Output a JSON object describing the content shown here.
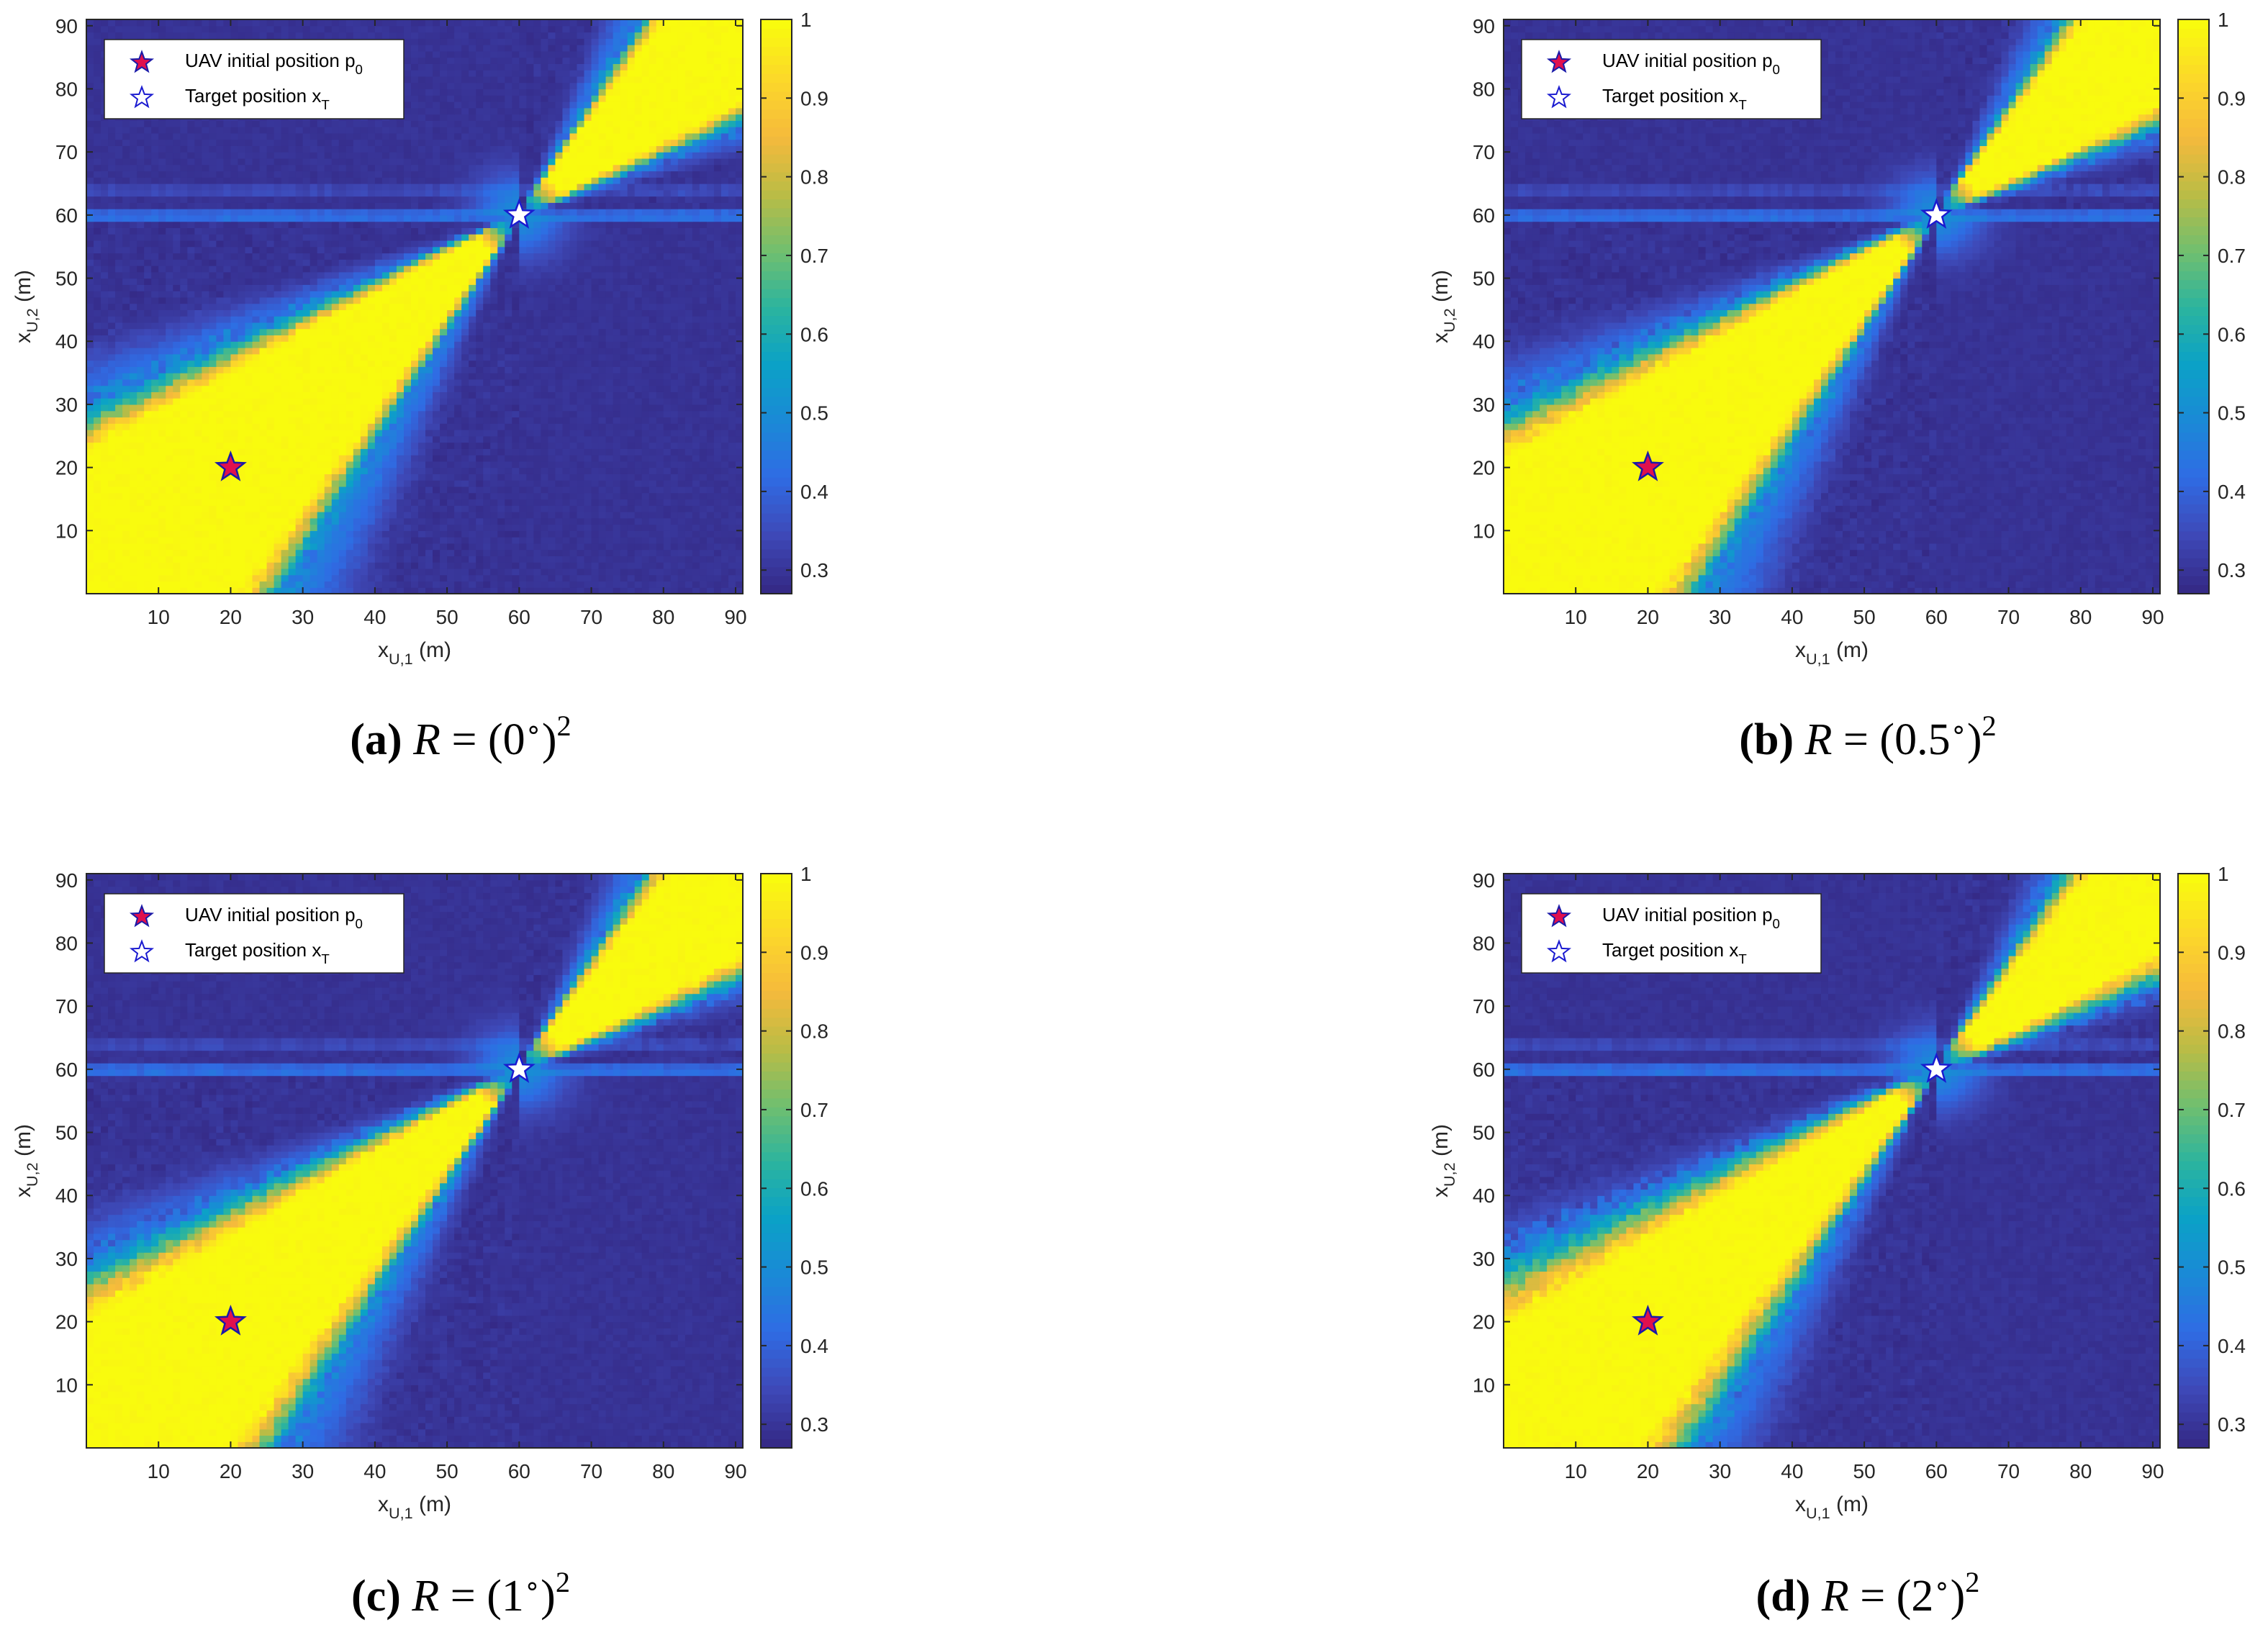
{
  "chart_data": [
    {
      "type": "heatmap",
      "panel": "a",
      "caption": {
        "letter": "(a)",
        "prefix": "R = (",
        "value": "0",
        "degree": "∘",
        "suffix": ")",
        "power": "2"
      },
      "xlabel": {
        "main": "x",
        "sub": "U,1",
        "unit": "(m)"
      },
      "ylabel": {
        "main": "x",
        "sub": "U,2",
        "unit": "(m)"
      },
      "xlim": [
        0,
        91
      ],
      "ylim": [
        0,
        91
      ],
      "xticks": [
        10,
        20,
        30,
        40,
        50,
        60,
        70,
        80,
        90
      ],
      "yticks": [
        10,
        20,
        30,
        40,
        50,
        60,
        70,
        80,
        90
      ],
      "colorbar": {
        "range": [
          0.27,
          1
        ],
        "ticks": [
          "1",
          "0.9",
          "0.8",
          "0.7",
          "0.6",
          "0.5",
          "0.4",
          "0.3"
        ],
        "tick_values": [
          1,
          0.9,
          0.8,
          0.7,
          0.6,
          0.5,
          0.4,
          0.3
        ]
      },
      "legend": {
        "position": "top-left",
        "entries": [
          {
            "label": "UAV initial position p",
            "sub": "0"
          },
          {
            "label": "Target position x",
            "sub": "T"
          }
        ]
      },
      "markers": {
        "uav": [
          20,
          20
        ],
        "target": [
          60,
          60
        ]
      },
      "field": {
        "center": [
          60,
          60
        ],
        "lower_arm_slopes": [
          0.64,
          1.5
        ],
        "upper_arm_slopes": [
          0.6,
          1.5
        ],
        "band_width": 0.12,
        "base_level": 0.28,
        "row_stripe_levels": {
          "60": 0.42,
          "61": 0.4,
          "64": 0.34,
          "65": 0.33
        }
      }
    },
    {
      "type": "heatmap",
      "panel": "b",
      "caption": {
        "letter": "(b)",
        "prefix": "R = (",
        "value": "0.5",
        "degree": "∘",
        "suffix": ")",
        "power": "2"
      },
      "xlabel": {
        "main": "x",
        "sub": "U,1",
        "unit": "(m)"
      },
      "ylabel": {
        "main": "x",
        "sub": "U,2",
        "unit": "(m)"
      },
      "xlim": [
        0,
        91
      ],
      "ylim": [
        0,
        91
      ],
      "xticks": [
        10,
        20,
        30,
        40,
        50,
        60,
        70,
        80,
        90
      ],
      "yticks": [
        10,
        20,
        30,
        40,
        50,
        60,
        70,
        80,
        90
      ],
      "colorbar": {
        "range": [
          0.27,
          1
        ],
        "ticks": [
          "1",
          "0.9",
          "0.8",
          "0.7",
          "0.6",
          "0.5",
          "0.4",
          "0.3"
        ],
        "tick_values": [
          1,
          0.9,
          0.8,
          0.7,
          0.6,
          0.5,
          0.4,
          0.3
        ]
      },
      "legend": {
        "position": "top-left",
        "entries": [
          {
            "label": "UAV initial position p",
            "sub": "0"
          },
          {
            "label": "Target position x",
            "sub": "T"
          }
        ]
      },
      "markers": {
        "uav": [
          20,
          20
        ],
        "target": [
          60,
          60
        ]
      },
      "field": {
        "center": [
          60,
          60
        ],
        "lower_arm_slopes": [
          0.66,
          1.5
        ],
        "upper_arm_slopes": [
          0.58,
          1.45
        ],
        "band_width": 0.13,
        "base_level": 0.28,
        "row_stripe_levels": {
          "60": 0.42,
          "61": 0.4,
          "64": 0.34,
          "65": 0.33
        }
      }
    },
    {
      "type": "heatmap",
      "panel": "c",
      "caption": {
        "letter": "(c)",
        "prefix": "R = (",
        "value": "1",
        "degree": "∘",
        "suffix": ")",
        "power": "2"
      },
      "xlabel": {
        "main": "x",
        "sub": "U,1",
        "unit": "(m)"
      },
      "ylabel": {
        "main": "x",
        "sub": "U,2",
        "unit": "(m)"
      },
      "xlim": [
        0,
        91
      ],
      "ylim": [
        0,
        91
      ],
      "xticks": [
        10,
        20,
        30,
        40,
        50,
        60,
        70,
        80,
        90
      ],
      "yticks": [
        10,
        20,
        30,
        40,
        50,
        60,
        70,
        80,
        90
      ],
      "colorbar": {
        "range": [
          0.27,
          1
        ],
        "ticks": [
          "1",
          "0.9",
          "0.8",
          "0.7",
          "0.6",
          "0.5",
          "0.4",
          "0.3"
        ],
        "tick_values": [
          1,
          0.9,
          0.8,
          0.7,
          0.6,
          0.5,
          0.4,
          0.3
        ]
      },
      "legend": {
        "position": "top-left",
        "entries": [
          {
            "label": "UAV initial position p",
            "sub": "0"
          },
          {
            "label": "Target position x",
            "sub": "T"
          }
        ]
      },
      "markers": {
        "uav": [
          20,
          20
        ],
        "target": [
          60,
          60
        ]
      },
      "field": {
        "center": [
          60,
          60
        ],
        "lower_arm_slopes": [
          0.68,
          1.45
        ],
        "upper_arm_slopes": [
          0.6,
          1.45
        ],
        "band_width": 0.14,
        "base_level": 0.28,
        "row_stripe_levels": {
          "60": 0.42,
          "61": 0.4,
          "64": 0.34,
          "65": 0.33
        }
      }
    },
    {
      "type": "heatmap",
      "panel": "d",
      "caption": {
        "letter": "(d)",
        "prefix": "R = (",
        "value": "2",
        "degree": "∘",
        "suffix": ")",
        "power": "2"
      },
      "xlabel": {
        "main": "x",
        "sub": "U,1",
        "unit": "(m)"
      },
      "ylabel": {
        "main": "x",
        "sub": "U,2",
        "unit": "(m)"
      },
      "xlim": [
        0,
        91
      ],
      "ylim": [
        0,
        91
      ],
      "xticks": [
        10,
        20,
        30,
        40,
        50,
        60,
        70,
        80,
        90
      ],
      "yticks": [
        10,
        20,
        30,
        40,
        50,
        60,
        70,
        80,
        90
      ],
      "colorbar": {
        "range": [
          0.27,
          1
        ],
        "ticks": [
          "1",
          "0.9",
          "0.8",
          "0.7",
          "0.6",
          "0.5",
          "0.4",
          "0.3"
        ],
        "tick_values": [
          1,
          0.9,
          0.8,
          0.7,
          0.6,
          0.5,
          0.4,
          0.3
        ]
      },
      "legend": {
        "position": "top-left",
        "entries": [
          {
            "label": "UAV initial position p",
            "sub": "0"
          },
          {
            "label": "Target position x",
            "sub": "T"
          }
        ]
      },
      "markers": {
        "uav": [
          20,
          20
        ],
        "target": [
          60,
          60
        ]
      },
      "field": {
        "center": [
          60,
          60
        ],
        "lower_arm_slopes": [
          0.7,
          1.4
        ],
        "upper_arm_slopes": [
          0.62,
          1.4
        ],
        "band_width": 0.16,
        "base_level": 0.28,
        "row_stripe_levels": {
          "60": 0.42,
          "61": 0.4,
          "64": 0.34,
          "65": 0.33
        }
      }
    }
  ],
  "colors": {
    "parula_stops": [
      "#352a87",
      "#3e4ab9",
      "#2f6ce4",
      "#1a8ad6",
      "#0ba2c6",
      "#2cb49e",
      "#72bf6e",
      "#bbbc45",
      "#f5ba3c",
      "#fcd72a",
      "#f9fb0e"
    ],
    "uav_marker_fill": "#e0104e",
    "uav_marker_stroke": "#1a1aa8",
    "target_marker_fill": "#ffffff",
    "target_marker_stroke": "#1a1ad0",
    "axis": "#262626"
  }
}
